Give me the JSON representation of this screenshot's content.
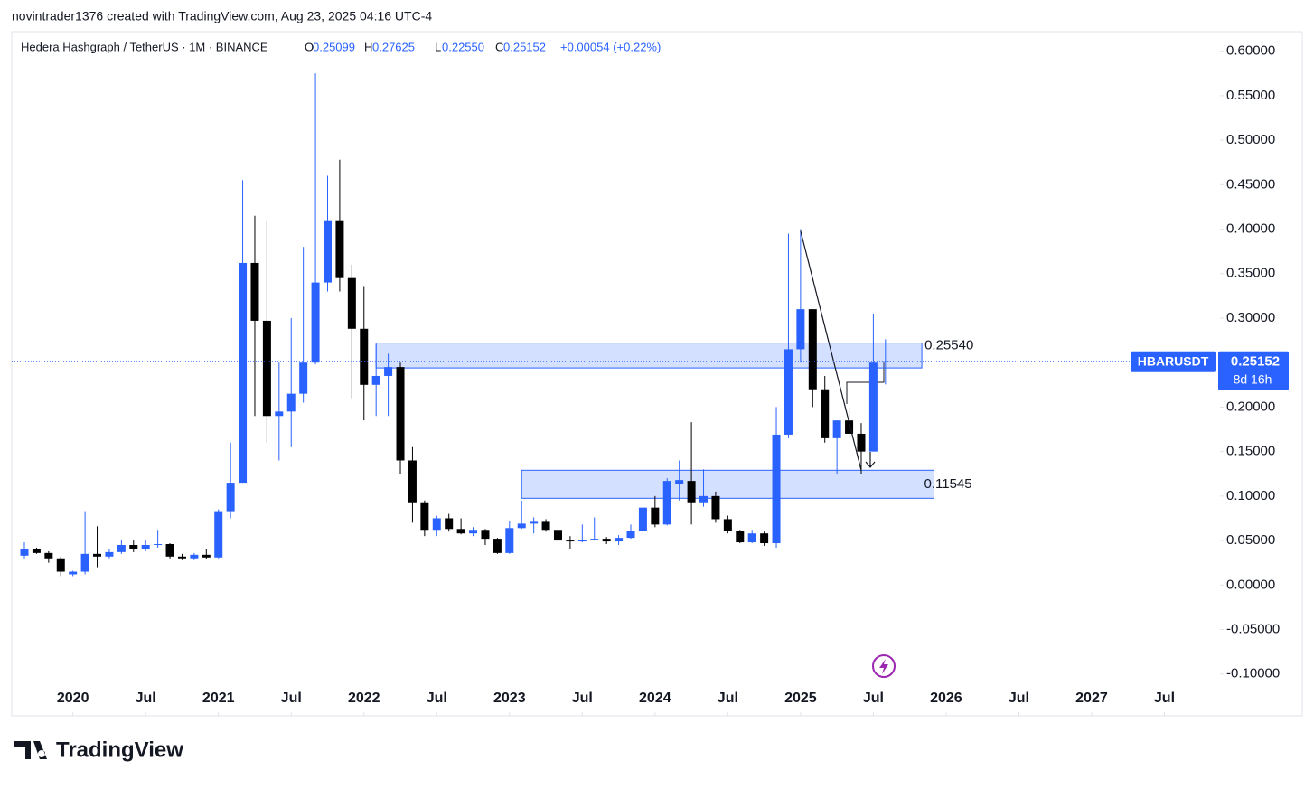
{
  "header": "novintrader1376 created with TradingView.com, Aug 23, 2025 04:16 UTC-4",
  "brand": "TradingView",
  "chart_data": {
    "type": "candlestick",
    "legend": {
      "symbol": "Hedera Hashgraph / TetherUS · 1M · BINANCE",
      "open_label": "O",
      "open": "0.25099",
      "high_label": "H",
      "high": "0.27625",
      "low_label": "L",
      "low": "0.22550",
      "close_label": "C",
      "close": "0.25152",
      "change": "+0.00054 (+0.22%)"
    },
    "up_color": "#2962ff",
    "down_color": "#000000",
    "x": [
      "2019-09",
      "2019-10",
      "2019-11",
      "2019-12",
      "2020-01",
      "2020-02",
      "2020-03",
      "2020-04",
      "2020-05",
      "2020-06",
      "2020-07",
      "2020-08",
      "2020-09",
      "2020-10",
      "2020-11",
      "2020-12",
      "2021-01",
      "2021-02",
      "2021-03",
      "2021-04",
      "2021-05",
      "2021-06",
      "2021-07",
      "2021-08",
      "2021-09",
      "2021-10",
      "2021-11",
      "2021-12",
      "2022-01",
      "2022-02",
      "2022-03",
      "2022-04",
      "2022-05",
      "2022-06",
      "2022-07",
      "2022-08",
      "2022-09",
      "2022-10",
      "2022-11",
      "2022-12",
      "2023-01",
      "2023-02",
      "2023-03",
      "2023-04",
      "2023-05",
      "2023-06",
      "2023-07",
      "2023-08",
      "2023-09",
      "2023-10",
      "2023-11",
      "2023-12",
      "2024-01",
      "2024-02",
      "2024-03",
      "2024-04",
      "2024-05",
      "2024-06",
      "2024-07",
      "2024-08",
      "2024-09",
      "2024-10",
      "2024-11",
      "2024-12",
      "2025-01",
      "2025-02",
      "2025-03",
      "2025-04",
      "2025-05",
      "2025-06",
      "2025-07",
      "2025-08"
    ],
    "open": [
      0.033,
      0.04,
      0.036,
      0.03,
      0.012,
      0.015,
      0.035,
      0.032,
      0.037,
      0.045,
      0.04,
      0.045,
      0.046,
      0.032,
      0.03,
      0.034,
      0.031,
      0.083,
      0.115,
      0.362,
      0.297,
      0.19,
      0.195,
      0.215,
      0.25,
      0.34,
      0.41,
      0.345,
      0.288,
      0.225,
      0.235,
      0.245,
      0.14,
      0.093,
      0.062,
      0.075,
      0.063,
      0.058,
      0.062,
      0.052,
      0.036,
      0.064,
      0.069,
      0.071,
      0.062,
      0.05,
      0.049,
      0.051,
      0.052,
      0.049,
      0.053,
      0.061,
      0.087,
      0.068,
      0.114,
      0.117,
      0.093,
      0.1,
      0.074,
      0.061,
      0.048,
      0.058,
      0.047,
      0.169,
      0.265,
      0.31,
      0.22,
      0.165,
      0.185,
      0.17,
      0.15,
      0.25099
    ],
    "high": [
      0.048,
      0.042,
      0.038,
      0.032,
      0.016,
      0.083,
      0.066,
      0.04,
      0.05,
      0.05,
      0.05,
      0.062,
      0.047,
      0.035,
      0.036,
      0.04,
      0.085,
      0.16,
      0.455,
      0.415,
      0.41,
      0.25,
      0.3,
      0.38,
      0.575,
      0.46,
      0.478,
      0.36,
      0.335,
      0.27,
      0.26,
      0.25,
      0.155,
      0.095,
      0.078,
      0.08,
      0.075,
      0.065,
      0.063,
      0.053,
      0.072,
      0.095,
      0.076,
      0.074,
      0.063,
      0.055,
      0.068,
      0.076,
      0.054,
      0.056,
      0.068,
      0.086,
      0.1,
      0.12,
      0.14,
      0.183,
      0.13,
      0.105,
      0.078,
      0.062,
      0.062,
      0.06,
      0.2,
      0.395,
      0.4,
      0.31,
      0.235,
      0.185,
      0.2,
      0.182,
      0.305,
      0.27625
    ],
    "low": [
      0.03,
      0.035,
      0.025,
      0.01,
      0.01,
      0.012,
      0.02,
      0.03,
      0.035,
      0.037,
      0.038,
      0.042,
      0.03,
      0.028,
      0.028,
      0.029,
      0.03,
      0.075,
      0.115,
      0.19,
      0.16,
      0.14,
      0.155,
      0.205,
      0.248,
      0.33,
      0.33,
      0.21,
      0.185,
      0.19,
      0.19,
      0.125,
      0.07,
      0.055,
      0.055,
      0.06,
      0.057,
      0.055,
      0.045,
      0.035,
      0.035,
      0.063,
      0.058,
      0.06,
      0.048,
      0.04,
      0.048,
      0.05,
      0.046,
      0.045,
      0.052,
      0.058,
      0.065,
      0.067,
      0.095,
      0.068,
      0.088,
      0.07,
      0.058,
      0.047,
      0.047,
      0.044,
      0.042,
      0.165,
      0.25,
      0.2,
      0.16,
      0.125,
      0.165,
      0.125,
      0.15,
      0.2255
    ],
    "close": [
      0.04,
      0.036,
      0.03,
      0.015,
      0.015,
      0.035,
      0.032,
      0.037,
      0.045,
      0.04,
      0.045,
      0.046,
      0.032,
      0.03,
      0.034,
      0.031,
      0.083,
      0.115,
      0.362,
      0.297,
      0.19,
      0.195,
      0.215,
      0.25,
      0.34,
      0.41,
      0.345,
      0.288,
      0.225,
      0.235,
      0.245,
      0.14,
      0.093,
      0.062,
      0.075,
      0.063,
      0.058,
      0.062,
      0.052,
      0.036,
      0.064,
      0.069,
      0.071,
      0.062,
      0.05,
      0.049,
      0.051,
      0.052,
      0.049,
      0.053,
      0.061,
      0.087,
      0.068,
      0.117,
      0.118,
      0.093,
      0.1,
      0.074,
      0.061,
      0.048,
      0.058,
      0.047,
      0.169,
      0.265,
      0.31,
      0.22,
      0.165,
      0.185,
      0.17,
      0.15,
      0.25,
      0.25152
    ],
    "ylim": [
      -0.147,
      0.622
    ],
    "yticks": [
      {
        "value": 0.6,
        "label": "0.60000"
      },
      {
        "value": 0.55,
        "label": "0.55000"
      },
      {
        "value": 0.5,
        "label": "0.50000"
      },
      {
        "value": 0.45,
        "label": "0.45000"
      },
      {
        "value": 0.4,
        "label": "0.40000"
      },
      {
        "value": 0.35,
        "label": "0.35000"
      },
      {
        "value": 0.3,
        "label": "0.30000"
      },
      {
        "value": 0.25,
        "label": "0.25000"
      },
      {
        "value": 0.2,
        "label": "0.20000"
      },
      {
        "value": 0.15,
        "label": "0.15000"
      },
      {
        "value": 0.1,
        "label": "0.10000"
      },
      {
        "value": 0.05,
        "label": "0.05000"
      },
      {
        "value": 0,
        "label": "0.00000"
      },
      {
        "value": -0.05,
        "label": "-0.05000"
      },
      {
        "value": -0.1,
        "label": "-0.10000"
      }
    ],
    "xticks": [
      {
        "value": "2020-01",
        "label": "2020"
      },
      {
        "value": "2020-07",
        "label": "Jul"
      },
      {
        "value": "2021-01",
        "label": "2021"
      },
      {
        "value": "2021-07",
        "label": "Jul"
      },
      {
        "value": "2022-01",
        "label": "2022"
      },
      {
        "value": "2022-07",
        "label": "Jul"
      },
      {
        "value": "2023-01",
        "label": "2023"
      },
      {
        "value": "2023-07",
        "label": "Jul"
      },
      {
        "value": "2024-01",
        "label": "2024"
      },
      {
        "value": "2024-07",
        "label": "Jul"
      },
      {
        "value": "2025-01",
        "label": "2025"
      },
      {
        "value": "2025-07",
        "label": "Jul"
      },
      {
        "value": "2026-01",
        "label": "2026"
      },
      {
        "value": "2026-07",
        "label": "Jul"
      },
      {
        "value": "2027-01",
        "label": "2027"
      },
      {
        "value": "2027-07",
        "label": "Jul"
      }
    ],
    "grid": false,
    "zones": [
      {
        "start": "2022-02",
        "end": "2025-11",
        "top": 0.272,
        "bottom": 0.244,
        "label": "0.25540"
      },
      {
        "start": "2023-02",
        "end": "2025-12",
        "top": 0.129,
        "bottom": 0.0975,
        "label": "0.11545"
      }
    ],
    "trendline": {
      "start": "2025-01",
      "end": "2025-06",
      "from": 0.398,
      "to": 0.129
    },
    "symbol_tag": "HBARUSDT",
    "price_label": "0.25152",
    "countdown": "8d 16h"
  }
}
